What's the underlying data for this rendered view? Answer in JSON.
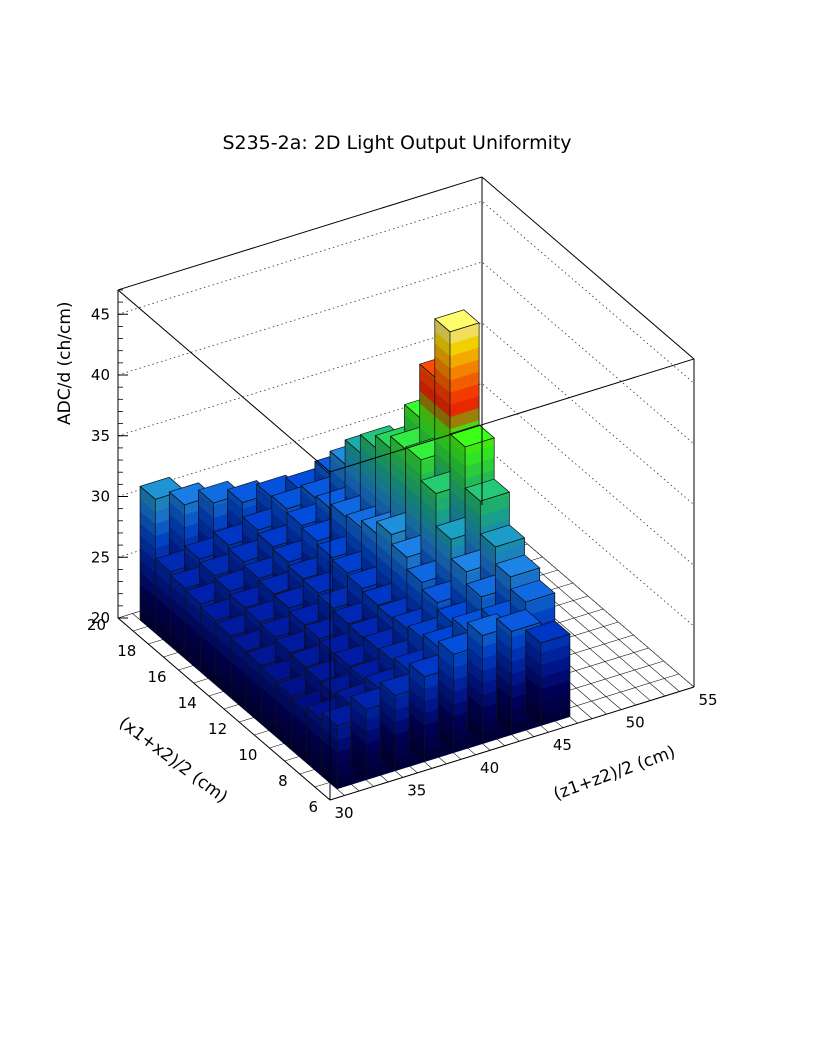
{
  "chart_data": {
    "type": "lego3d",
    "title": "S235-2a: 2D Light Output Uniformity",
    "zlabel": "ADC/d (ch/cm)",
    "xlabel": "(x1+x2)/2 (cm)",
    "ylabel": "(z1+z2)/2 (cm)",
    "x_ticks": [
      "20",
      "18",
      "16",
      "14",
      "12",
      "10",
      "8",
      "6"
    ],
    "y_ticks": [
      "30",
      "35",
      "40",
      "45",
      "50",
      "55"
    ],
    "z_ticks": [
      "20",
      "25",
      "30",
      "35",
      "40",
      "45"
    ],
    "xlim": [
      6,
      20
    ],
    "ylim": [
      30,
      55
    ],
    "zlim": [
      20,
      47
    ],
    "x_bins": [
      7,
      8,
      9,
      10,
      11,
      12,
      13,
      14,
      15,
      16,
      17,
      18,
      19
    ],
    "y_bins": [
      32,
      34,
      36,
      38,
      40,
      42,
      44,
      46
    ],
    "values": [
      [
        25.2,
        25.8,
        26.2,
        27.0,
        28.1,
        28.9,
        28.5,
        26.8
      ],
      [
        24.6,
        25.1,
        25.6,
        26.4,
        27.6,
        28.2,
        28.2,
        29.1
      ],
      [
        24.2,
        24.8,
        25.3,
        26.1,
        27.2,
        27.8,
        29.2,
        30.1
      ],
      [
        24.4,
        24.9,
        25.4,
        26.0,
        26.9,
        28.4,
        30.2,
        31.5
      ],
      [
        24.6,
        25.0,
        25.3,
        25.9,
        26.7,
        29.0,
        31.8,
        34.2
      ],
      [
        24.8,
        25.1,
        25.5,
        26.0,
        26.8,
        30.0,
        34.5,
        37.6
      ],
      [
        24.9,
        25.3,
        25.6,
        26.2,
        27.1,
        30.8,
        36.2,
        46.0
      ],
      [
        25.1,
        25.5,
        25.9,
        26.4,
        27.3,
        29.8,
        36.0,
        41.2
      ],
      [
        25.3,
        25.6,
        26.0,
        26.5,
        27.5,
        29.2,
        35.0,
        36.8
      ],
      [
        25.6,
        25.9,
        26.2,
        26.8,
        27.8,
        29.0,
        34.0,
        33.0
      ],
      [
        25.8,
        26.1,
        26.5,
        27.0,
        28.0,
        28.6,
        32.5,
        30.8
      ],
      [
        26.1,
        26.4,
        26.8,
        27.3,
        28.3,
        28.4,
        30.5,
        29.5
      ],
      [
        31.0,
        29.8,
        29.2,
        28.5,
        28.2,
        28.0,
        28.6,
        28.2
      ]
    ],
    "color_scale": [
      "#000033",
      "#00005a",
      "#001a99",
      "#0044cc",
      "#1e7fd6",
      "#19a39a",
      "#28c850",
      "#39ff14",
      "#ff1e00",
      "#ff7800",
      "#ffdd00",
      "#ffffff"
    ],
    "grid": true
  }
}
